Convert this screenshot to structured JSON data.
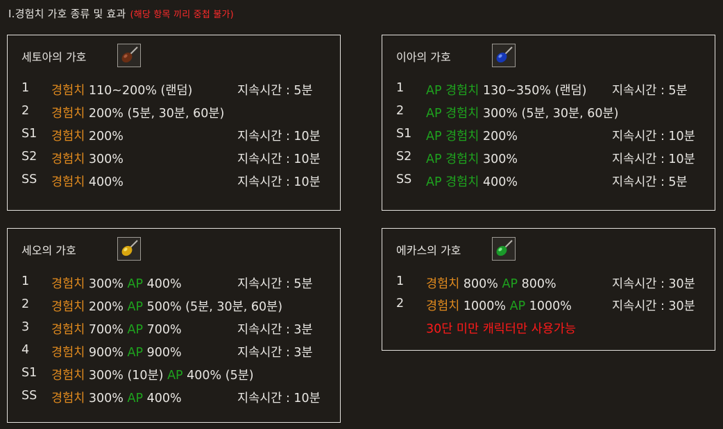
{
  "heading": {
    "title": "Ⅰ.경험치 가호 종류 및 효과",
    "note": "(해당 항목 끼리 중첩 불가)"
  },
  "panels": {
    "setoa": {
      "title": "세토아의 가호",
      "icon": "brown-orb-icon",
      "rows": [
        {
          "grade": "1",
          "effect": [
            {
              "t": "경험치",
              "c": "orange"
            },
            {
              "t": " 110~200% (랜덤)",
              "c": "white"
            }
          ],
          "duration": "지속시간 : 5분"
        },
        {
          "grade": "2",
          "effect": [
            {
              "t": "경험치",
              "c": "orange"
            },
            {
              "t": " 200% (5분, 30분, 60분)",
              "c": "white"
            }
          ],
          "duration": ""
        },
        {
          "grade": "S1",
          "effect": [
            {
              "t": "경험치",
              "c": "orange"
            },
            {
              "t": " 200%",
              "c": "white"
            }
          ],
          "duration": "지속시간 : 10분"
        },
        {
          "grade": "S2",
          "effect": [
            {
              "t": "경험치",
              "c": "orange"
            },
            {
              "t": " 300%",
              "c": "white"
            }
          ],
          "duration": "지속시간 : 10분"
        },
        {
          "grade": "SS",
          "effect": [
            {
              "t": "경험치",
              "c": "orange"
            },
            {
              "t": " 400%",
              "c": "white"
            }
          ],
          "duration": "지속시간 : 10분"
        }
      ]
    },
    "ia": {
      "title": "이아의 가호",
      "icon": "blue-orb-icon",
      "rows": [
        {
          "grade": "1",
          "effect": [
            {
              "t": "AP 경험치",
              "c": "green"
            },
            {
              "t": " 130~350% (랜덤)",
              "c": "white"
            }
          ],
          "duration": "지속시간 : 5분"
        },
        {
          "grade": "2",
          "effect": [
            {
              "t": "AP 경험치",
              "c": "green"
            },
            {
              "t": " 300% (5분, 30분, 60분)",
              "c": "white"
            }
          ],
          "duration": ""
        },
        {
          "grade": "S1",
          "effect": [
            {
              "t": "AP 경험치",
              "c": "green"
            },
            {
              "t": " 200%",
              "c": "white"
            }
          ],
          "duration": "지속시간 : 10분"
        },
        {
          "grade": "S2",
          "effect": [
            {
              "t": "AP 경험치",
              "c": "green"
            },
            {
              "t": " 300%",
              "c": "white"
            }
          ],
          "duration": "지속시간 : 10분"
        },
        {
          "grade": "SS",
          "effect": [
            {
              "t": "AP 경험치",
              "c": "green"
            },
            {
              "t": " 400%",
              "c": "white"
            }
          ],
          "duration": "지속시간 : 5분"
        }
      ]
    },
    "seo": {
      "title": "세오의 가호",
      "icon": "yellow-orb-icon",
      "rows": [
        {
          "grade": "1",
          "effect": [
            {
              "t": "경험치",
              "c": "orange"
            },
            {
              "t": " 300% ",
              "c": "white"
            },
            {
              "t": "AP",
              "c": "green"
            },
            {
              "t": " 400%",
              "c": "white"
            }
          ],
          "duration": "지속시간 : 5분"
        },
        {
          "grade": "2",
          "effect": [
            {
              "t": "경험치",
              "c": "orange"
            },
            {
              "t": " 200% ",
              "c": "white"
            },
            {
              "t": "AP",
              "c": "green"
            },
            {
              "t": " 500% (5분, 30분, 60분)",
              "c": "white"
            }
          ],
          "duration": ""
        },
        {
          "grade": "3",
          "effect": [
            {
              "t": "경험치",
              "c": "orange"
            },
            {
              "t": " 700% ",
              "c": "white"
            },
            {
              "t": "AP",
              "c": "green"
            },
            {
              "t": " 700%",
              "c": "white"
            }
          ],
          "duration": "지속시간 : 3분"
        },
        {
          "grade": "4",
          "effect": [
            {
              "t": "경험치",
              "c": "orange"
            },
            {
              "t": " 900% ",
              "c": "white"
            },
            {
              "t": "AP",
              "c": "green"
            },
            {
              "t": " 900%",
              "c": "white"
            }
          ],
          "duration": "지속시간 : 3분"
        },
        {
          "grade": "S1",
          "effect": [
            {
              "t": "경험치",
              "c": "orange"
            },
            {
              "t": " 300% (10분) ",
              "c": "white"
            },
            {
              "t": "AP",
              "c": "green"
            },
            {
              "t": " 400% (5분)",
              "c": "white"
            }
          ],
          "duration": ""
        },
        {
          "grade": "SS",
          "effect": [
            {
              "t": "경험치",
              "c": "orange"
            },
            {
              "t": " 300% ",
              "c": "white"
            },
            {
              "t": "AP",
              "c": "green"
            },
            {
              "t": " 400%",
              "c": "white"
            }
          ],
          "duration": "지속시간 : 10분"
        }
      ]
    },
    "ekas": {
      "title": "에카스의 가호",
      "icon": "green-orb-icon",
      "rows": [
        {
          "grade": "1",
          "effect": [
            {
              "t": "경험치",
              "c": "orange"
            },
            {
              "t": " 800% ",
              "c": "white"
            },
            {
              "t": "AP",
              "c": "green"
            },
            {
              "t": " 800%",
              "c": "white"
            }
          ],
          "duration": "지속시간 : 30분"
        },
        {
          "grade": "2",
          "effect": [
            {
              "t": "경험치",
              "c": "orange"
            },
            {
              "t": " 1000% ",
              "c": "white"
            },
            {
              "t": "AP",
              "c": "green"
            },
            {
              "t": " 1000%",
              "c": "white"
            }
          ],
          "duration": "지속시간 : 30분"
        }
      ],
      "note": "30단 미만 캐릭터만 사용가능"
    }
  },
  "colors": {
    "orange": "#e08a1e",
    "green": "#1ea31e",
    "white": "#e8e6e2",
    "red": "#ff1a1a"
  }
}
